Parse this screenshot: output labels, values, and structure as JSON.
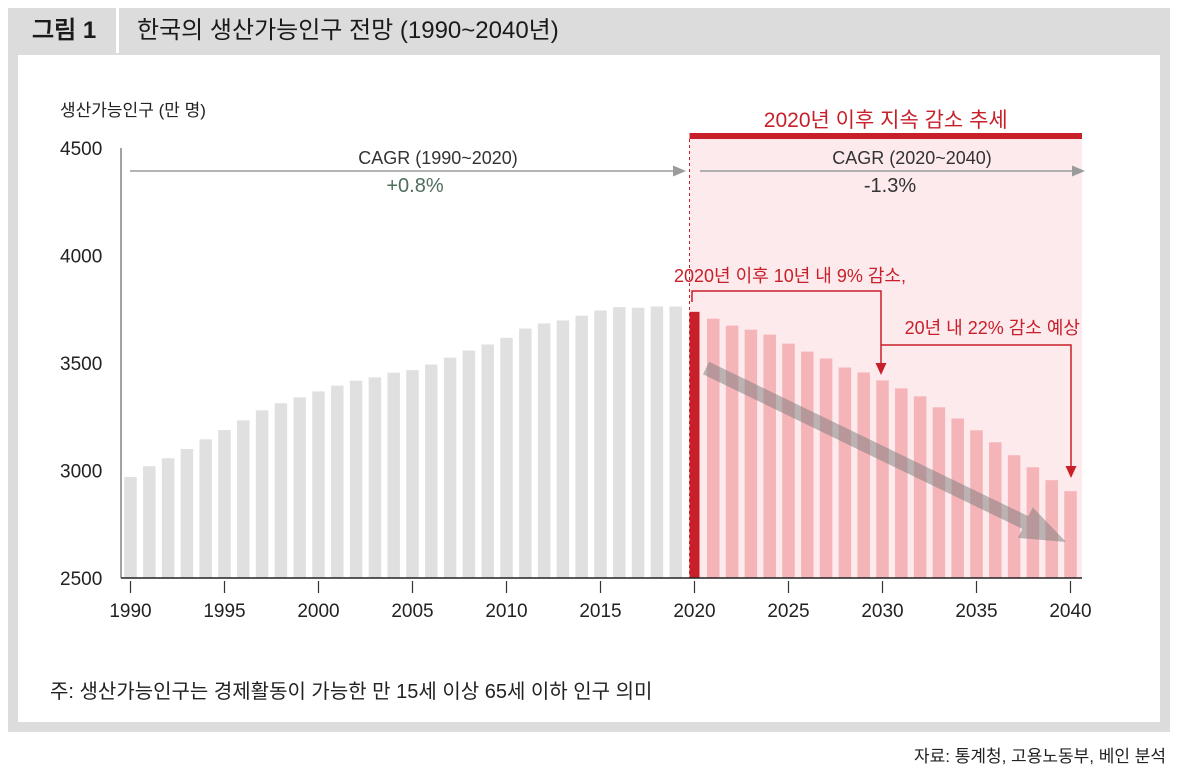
{
  "figure_label": "그림 1",
  "chart_data": {
    "type": "bar",
    "title": "한국의 생산가능인구 전망 (1990~2040년)",
    "xlabel": "",
    "ylabel": "생산가능인구 (만 명)",
    "ylim": [
      2500,
      4500
    ],
    "y_ticks": [
      2500,
      3000,
      3500,
      4000,
      4500
    ],
    "x_ticks": [
      1990,
      1995,
      2000,
      2005,
      2010,
      2015,
      2020,
      2025,
      2030,
      2035,
      2040
    ],
    "grid": false,
    "legend": "none",
    "categories": [
      1990,
      1991,
      1992,
      1993,
      1994,
      1995,
      1996,
      1997,
      1998,
      1999,
      2000,
      2001,
      2002,
      2003,
      2004,
      2005,
      2006,
      2007,
      2008,
      2009,
      2010,
      2011,
      2012,
      2013,
      2014,
      2015,
      2016,
      2017,
      2018,
      2019,
      2020,
      2021,
      2022,
      2023,
      2024,
      2025,
      2026,
      2027,
      2028,
      2029,
      2030,
      2031,
      2032,
      2033,
      2034,
      2035,
      2036,
      2037,
      2038,
      2039,
      2040
    ],
    "values": [
      2970,
      3020,
      3057,
      3100,
      3145,
      3188,
      3233,
      3280,
      3313,
      3340,
      3368,
      3395,
      3418,
      3433,
      3455,
      3467,
      3493,
      3525,
      3558,
      3586,
      3617,
      3660,
      3684,
      3698,
      3720,
      3744,
      3760,
      3757,
      3763,
      3763,
      3738,
      3706,
      3674,
      3655,
      3632,
      3590,
      3553,
      3521,
      3479,
      3456,
      3419,
      3382,
      3345,
      3294,
      3242,
      3187,
      3131,
      3071,
      3015,
      2955,
      2904
    ],
    "highlight": {
      "from": 2020,
      "to": 2040,
      "label": "2020년 이후 지속 감소 추세"
    },
    "annotations": {
      "cagr_1990_2020": {
        "label": "CAGR (1990~2020)",
        "value": "+0.8%"
      },
      "cagr_2020_2040": {
        "label": "CAGR (2020~2040)",
        "value": "-1.3%"
      },
      "decline_10y": "2020년 이후 10년 내 9% 감소,",
      "decline_20y": "20년 내 22% 감소 예상"
    },
    "colors": {
      "history": "#e0e0e0",
      "base_year": "#c8202a",
      "projection": "#f5b4b8",
      "projection_shade": "#fdeaec",
      "cagr_positive": "#4f6e5c"
    }
  },
  "footnote": "주: 생산가능인구는 경제활동이 가능한 만 15세 이상 65세 이하 인구 의미",
  "source": "자료: 통계청, 고용노동부, 베인 분석"
}
